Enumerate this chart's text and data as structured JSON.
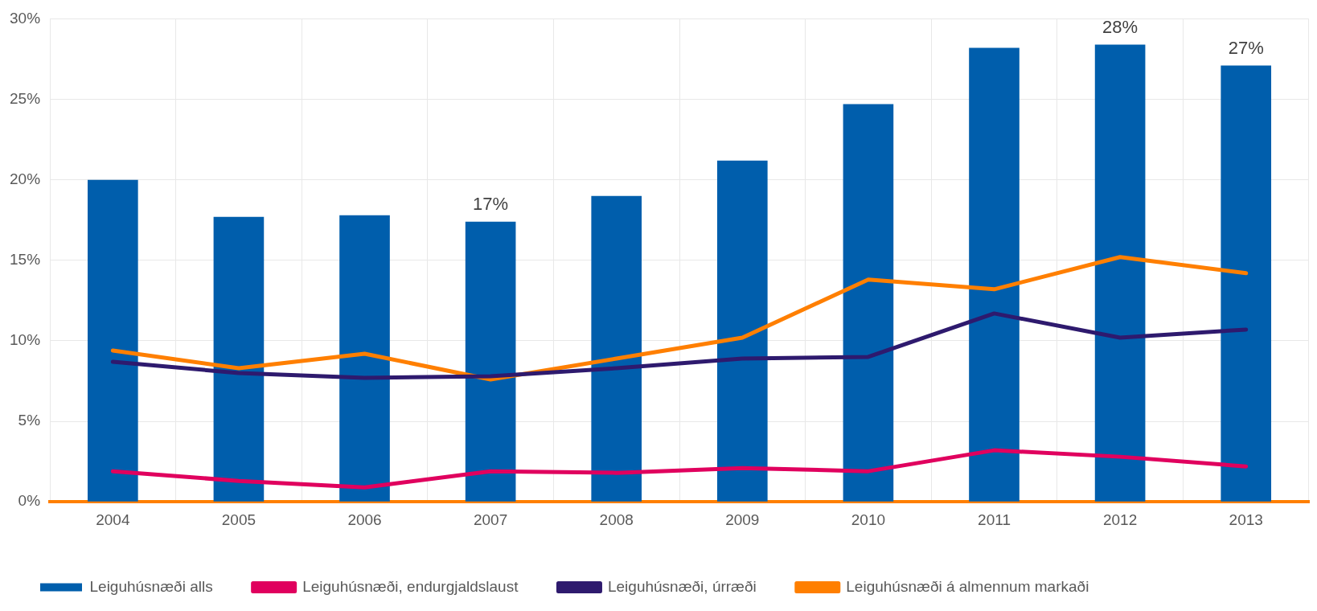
{
  "chart_data": {
    "type": "bar",
    "categories": [
      "2004",
      "2005",
      "2006",
      "2007",
      "2008",
      "2009",
      "2010",
      "2011",
      "2012",
      "2013"
    ],
    "series": [
      {
        "name": "Leiguhúsnæði alls",
        "color": "#005eac",
        "values": [
          20.0,
          17.7,
          17.8,
          17.4,
          19.0,
          21.2,
          24.7,
          28.2,
          28.4,
          27.1
        ],
        "value_labels": [
          null,
          null,
          null,
          "17%",
          null,
          null,
          null,
          null,
          "28%",
          "27%"
        ]
      },
      {
        "name": "Leiguhúsnæði, endurgjaldslaust",
        "type": "line",
        "color": "#e0005e",
        "values": [
          1.9,
          1.3,
          0.9,
          1.9,
          1.8,
          2.1,
          1.9,
          3.2,
          2.8,
          2.2
        ]
      },
      {
        "name": "Leiguhúsnæði, úrræði",
        "type": "line",
        "color": "#2e1a6e",
        "values": [
          8.7,
          8.0,
          7.7,
          7.8,
          8.3,
          8.9,
          9.0,
          11.7,
          10.2,
          10.7
        ]
      },
      {
        "name": "Leiguhúsnæði á almennum markaði",
        "type": "line",
        "color": "#ff7f00",
        "values": [
          9.4,
          8.3,
          9.2,
          7.6,
          8.9,
          10.2,
          13.8,
          13.2,
          15.2,
          14.2
        ]
      }
    ],
    "ylim": [
      0,
      30
    ],
    "yticks": [
      {
        "value": 0,
        "label": "0%"
      },
      {
        "value": 5,
        "label": "5%"
      },
      {
        "value": 10,
        "label": "10%"
      },
      {
        "value": 15,
        "label": "15%"
      },
      {
        "value": 20,
        "label": "20%"
      },
      {
        "value": 25,
        "label": "25%"
      },
      {
        "value": 30,
        "label": "30%"
      }
    ],
    "grid": true,
    "legend": "bottom left",
    "marker": "none",
    "line_style": "solid"
  }
}
